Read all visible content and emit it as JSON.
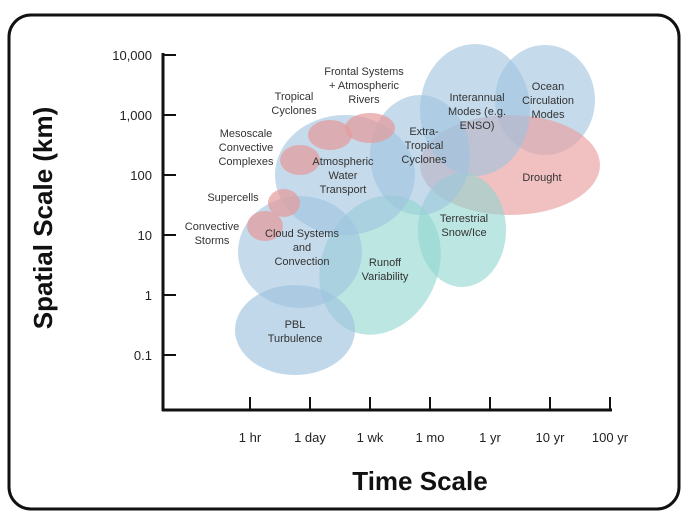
{
  "y_axis": {
    "label": "Spatial Scale (km)",
    "ticks": [
      "10,000",
      "1,000",
      "100",
      "10",
      "1",
      "0.1"
    ]
  },
  "x_axis": {
    "label": "Time Scale",
    "ticks": [
      "1 hr",
      "1 day",
      "1 wk",
      "1 mo",
      "1 yr",
      "10 yr",
      "100 yr"
    ]
  },
  "regions": [
    {
      "lines": [
        "PBL",
        "Turbulence"
      ]
    },
    {
      "lines": [
        "Cloud Systems",
        "and",
        "Convection"
      ]
    },
    {
      "lines": [
        "Runoff",
        "Variability"
      ]
    },
    {
      "lines": [
        "Terrestrial",
        "Snow/Ice"
      ]
    },
    {
      "lines": [
        "Atmospheric",
        "Water",
        "Transport"
      ]
    },
    {
      "lines": [
        "Extra-",
        "Tropical",
        "Cyclones"
      ]
    },
    {
      "lines": [
        "Interannual",
        "Modes (e.g.",
        "ENSO)"
      ]
    },
    {
      "lines": [
        "Ocean",
        "Circulation",
        "Modes"
      ]
    },
    {
      "lines": [
        "Drought"
      ]
    },
    {
      "lines": [
        "Convective",
        "Storms"
      ]
    },
    {
      "lines": [
        "Supercells"
      ]
    },
    {
      "lines": [
        "Mesoscale",
        "Convective",
        "Complexes"
      ]
    },
    {
      "lines": [
        "Tropical",
        "Cyclones"
      ]
    },
    {
      "lines": [
        "Frontal Systems",
        "+ Atmospheric",
        "Rivers"
      ]
    }
  ]
}
